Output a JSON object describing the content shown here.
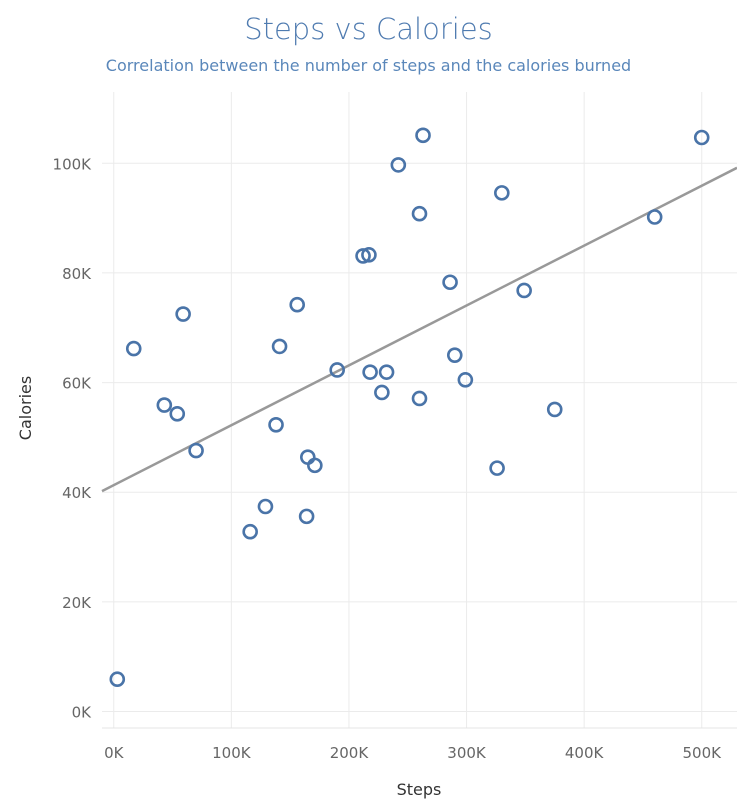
{
  "chart_data": {
    "type": "scatter",
    "title": "Steps vs Calories",
    "subtitle": "Correlation between the number of steps and the calories burned",
    "xlabel": "Steps",
    "ylabel": "Calories",
    "xlim": [
      -10000,
      530000
    ],
    "ylim": [
      -3000,
      113000
    ],
    "x_ticks": [
      {
        "value": 0,
        "label": "0K"
      },
      {
        "value": 100000,
        "label": "100K"
      },
      {
        "value": 200000,
        "label": "200K"
      },
      {
        "value": 300000,
        "label": "300K"
      },
      {
        "value": 400000,
        "label": "400K"
      },
      {
        "value": 500000,
        "label": "500K"
      }
    ],
    "y_ticks": [
      {
        "value": 0,
        "label": "0K"
      },
      {
        "value": 20000,
        "label": "20K"
      },
      {
        "value": 40000,
        "label": "40K"
      },
      {
        "value": 60000,
        "label": "60K"
      },
      {
        "value": 80000,
        "label": "80K"
      },
      {
        "value": 100000,
        "label": "100K"
      }
    ],
    "grid": true,
    "points": [
      {
        "x": 3000,
        "y": 5900
      },
      {
        "x": 17000,
        "y": 66200
      },
      {
        "x": 43000,
        "y": 55900
      },
      {
        "x": 54000,
        "y": 54300
      },
      {
        "x": 59000,
        "y": 72500
      },
      {
        "x": 70000,
        "y": 47600
      },
      {
        "x": 116000,
        "y": 32800
      },
      {
        "x": 129000,
        "y": 37400
      },
      {
        "x": 138000,
        "y": 52300
      },
      {
        "x": 141000,
        "y": 66600
      },
      {
        "x": 156000,
        "y": 74200
      },
      {
        "x": 164000,
        "y": 35600
      },
      {
        "x": 165000,
        "y": 46400
      },
      {
        "x": 171000,
        "y": 44900
      },
      {
        "x": 190000,
        "y": 62300
      },
      {
        "x": 212000,
        "y": 83100
      },
      {
        "x": 217000,
        "y": 83300
      },
      {
        "x": 218000,
        "y": 61900
      },
      {
        "x": 228000,
        "y": 58200
      },
      {
        "x": 232000,
        "y": 61900
      },
      {
        "x": 242000,
        "y": 99700
      },
      {
        "x": 260000,
        "y": 57100
      },
      {
        "x": 260000,
        "y": 90800
      },
      {
        "x": 263000,
        "y": 105100
      },
      {
        "x": 286000,
        "y": 78300
      },
      {
        "x": 290000,
        "y": 65000
      },
      {
        "x": 299000,
        "y": 60500
      },
      {
        "x": 326000,
        "y": 44400
      },
      {
        "x": 330000,
        "y": 94600
      },
      {
        "x": 349000,
        "y": 76800
      },
      {
        "x": 375000,
        "y": 55100
      },
      {
        "x": 460000,
        "y": 90200
      },
      {
        "x": 500000,
        "y": 104700
      }
    ],
    "trendline": {
      "intercept": 41300,
      "slope": 0.1092
    },
    "colors": {
      "points": "#4a74a8",
      "trendline": "#999999",
      "grid": "#ebebeb",
      "title": "#4f7bb0"
    }
  }
}
